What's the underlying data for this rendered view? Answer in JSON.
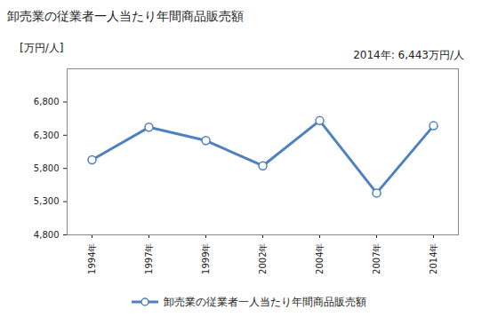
{
  "chart_data": {
    "type": "line",
    "title": "卸売業の従業者一人当たり年間商品販売額",
    "y_label": "[万円/人]",
    "annotation": "2014年: 6,443万円/人",
    "categories": [
      "1994年",
      "1997年",
      "1999年",
      "2002年",
      "2004年",
      "2007年",
      "2014年"
    ],
    "series": [
      {
        "name": "卸売業の従業者一人当たり年間商品販売額",
        "color": "#4f81bd",
        "marker": "circle",
        "values": [
          5930,
          6420,
          6220,
          5840,
          6520,
          5430,
          6443
        ]
      }
    ],
    "ylim": [
      4800,
      7300
    ],
    "yticks": [
      {
        "value": 4800,
        "label": "4,800"
      },
      {
        "value": 5300,
        "label": "5,300"
      },
      {
        "value": 5800,
        "label": "5,800"
      },
      {
        "value": 6300,
        "label": "6,300"
      },
      {
        "value": 6800,
        "label": "6,800"
      }
    ],
    "grid": false,
    "legend": "bottom"
  }
}
